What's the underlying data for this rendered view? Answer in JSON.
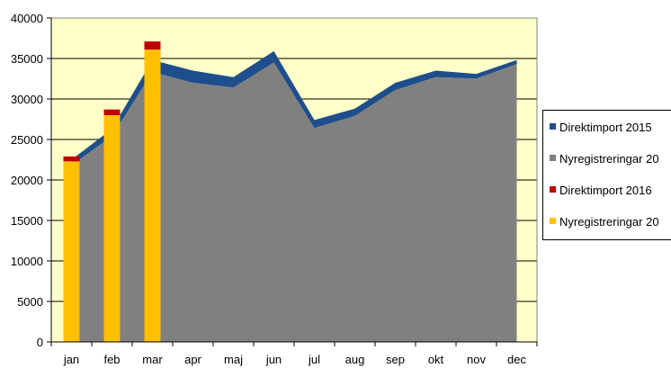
{
  "chart_data": {
    "type": "area",
    "categories": [
      "jan",
      "feb",
      "mar",
      "apr",
      "maj",
      "jun",
      "jul",
      "aug",
      "sep",
      "okt",
      "nov",
      "dec"
    ],
    "ylim": [
      0,
      40000
    ],
    "yticks": [
      0,
      5000,
      10000,
      15000,
      20000,
      25000,
      30000,
      35000,
      40000
    ],
    "grid": true,
    "legend_position": "right",
    "series": [
      {
        "name": "Nyregistreringar 20",
        "kind": "area",
        "color": "#808080",
        "values": [
          21800,
          25400,
          33300,
          32000,
          31400,
          34500,
          26400,
          27900,
          31100,
          32700,
          32500,
          34300
        ]
      },
      {
        "name": "Direktimport 2015",
        "kind": "area-stacked",
        "color": "#1F4E8C",
        "values": [
          700,
          900,
          1500,
          1500,
          1300,
          1400,
          1000,
          900,
          900,
          800,
          600,
          500
        ]
      },
      {
        "name": "Nyregistreringar 20",
        "kind": "bar",
        "color": "#FFC000",
        "values": [
          22300,
          28000,
          36100,
          null,
          null,
          null,
          null,
          null,
          null,
          null,
          null,
          null
        ]
      },
      {
        "name": "Direktimport 2016",
        "kind": "bar-stacked",
        "color": "#C00000",
        "values": [
          600,
          700,
          1000,
          null,
          null,
          null,
          null,
          null,
          null,
          null,
          null,
          null
        ]
      }
    ],
    "legend": [
      {
        "label": "Direktimport 2015",
        "color": "#1F4E8C"
      },
      {
        "label": "Nyregistreringar 20",
        "color": "#808080"
      },
      {
        "label": "Direktimport 2016",
        "color": "#C00000"
      },
      {
        "label": "Nyregistreringar 20",
        "color": "#FFC000"
      }
    ],
    "colors": {
      "plot_background": "#FFFFC8",
      "gridline": "#000000"
    }
  }
}
